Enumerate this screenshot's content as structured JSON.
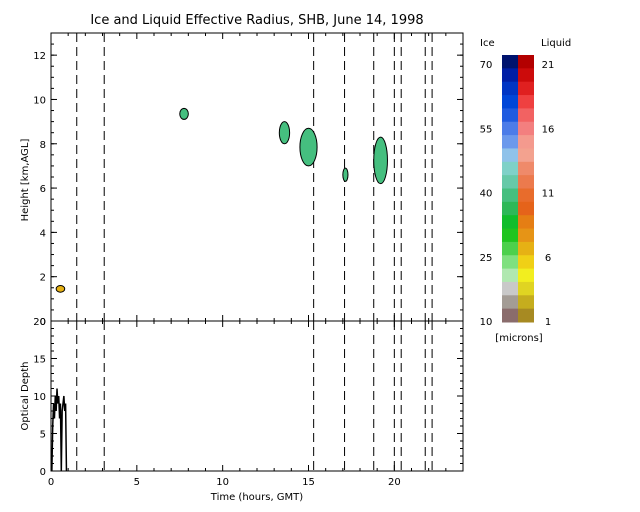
{
  "chart_data": [
    {
      "type": "heatmap",
      "title": "Ice and Liquid Effective Radius, SHB, June 14, 1998",
      "xlabel": "",
      "ylabel": "Height [km,AGL]",
      "xlim": [
        0,
        24
      ],
      "ylim": [
        0,
        13
      ],
      "grid": false,
      "xticks": [
        "0",
        "5",
        "10",
        "15",
        "20"
      ],
      "yticks": [
        "0",
        "2",
        "4",
        "6",
        "8",
        "10",
        "12"
      ],
      "dashed_lines_x": [
        1.5,
        3.1,
        15.3,
        17.1,
        18.8,
        20.0,
        20.4,
        21.8,
        22.2
      ],
      "regions": [
        {
          "phase": "liquid",
          "x": [
            0.3,
            0.8
          ],
          "y": [
            1.3,
            1.6
          ],
          "radius": 6
        },
        {
          "phase": "ice",
          "x": [
            7.5,
            8.0
          ],
          "y": [
            9.1,
            9.6
          ],
          "radius": 37
        },
        {
          "phase": "ice",
          "x": [
            13.3,
            13.9
          ],
          "y": [
            8.0,
            9.0
          ],
          "radius": 37
        },
        {
          "phase": "ice",
          "x": [
            14.5,
            15.5
          ],
          "y": [
            7.0,
            8.7
          ],
          "radius": 37
        },
        {
          "phase": "ice",
          "x": [
            17.0,
            17.3
          ],
          "y": [
            6.3,
            6.9
          ],
          "radius": 37
        },
        {
          "phase": "ice",
          "x": [
            18.8,
            19.6
          ],
          "y": [
            6.2,
            8.3
          ],
          "radius": 37
        }
      ]
    },
    {
      "type": "line",
      "xlabel": "Time (hours, GMT)",
      "ylabel": "Optical Depth",
      "xlim": [
        0,
        24
      ],
      "ylim": [
        0,
        20
      ],
      "grid": false,
      "xticks": [
        "0",
        "5",
        "10",
        "15",
        "20"
      ],
      "yticks": [
        "0",
        "5",
        "10",
        "15",
        "20"
      ],
      "dashed_lines_x": [
        1.5,
        3.1,
        15.3,
        17.1,
        18.8,
        20.0,
        20.4,
        21.8,
        22.2
      ],
      "series": [
        {
          "x": [
            0.05,
            0.1,
            0.15,
            0.2,
            0.25,
            0.3,
            0.35,
            0.4,
            0.45,
            0.5,
            0.55,
            0.6,
            0.65,
            0.7,
            0.75,
            0.8,
            0.85,
            0.9
          ],
          "values": [
            0,
            6,
            9,
            7,
            10,
            8,
            11,
            9,
            10,
            7,
            9,
            0,
            8,
            9,
            10,
            8,
            9,
            0
          ]
        }
      ]
    }
  ],
  "colorbar": {
    "ice_label": "Ice",
    "liquid_label": "Liquid",
    "ice_ticks": [
      "70",
      "55",
      "40",
      "25",
      "10"
    ],
    "liquid_ticks": [
      "21",
      "16",
      "11",
      "6",
      "1"
    ],
    "units": "[microns]",
    "ice_colors": [
      "#00136e",
      "#001ea5",
      "#0035c4",
      "#0046d8",
      "#1f5be0",
      "#4c7ce8",
      "#6b99ec",
      "#8fc2ea",
      "#7fd1c8",
      "#66c9a8",
      "#45bf7f",
      "#2db858",
      "#10bd2c",
      "#1fc41f",
      "#4cd04c",
      "#7fe07f",
      "#b0e8b0",
      "#c9c9c9",
      "#a39c95",
      "#8a6c6c"
    ],
    "liquid_colors": [
      "#b30000",
      "#cc0b0b",
      "#e02020",
      "#ef4040",
      "#f26262",
      "#f37f7f",
      "#f49a8e",
      "#f3a28f",
      "#ef8a6a",
      "#ec7a4d",
      "#e86c2c",
      "#e5631a",
      "#e57e14",
      "#e69416",
      "#e6b114",
      "#f0d016",
      "#f2ee1f",
      "#e0d422",
      "#c5ad1e",
      "#a78a22"
    ]
  }
}
